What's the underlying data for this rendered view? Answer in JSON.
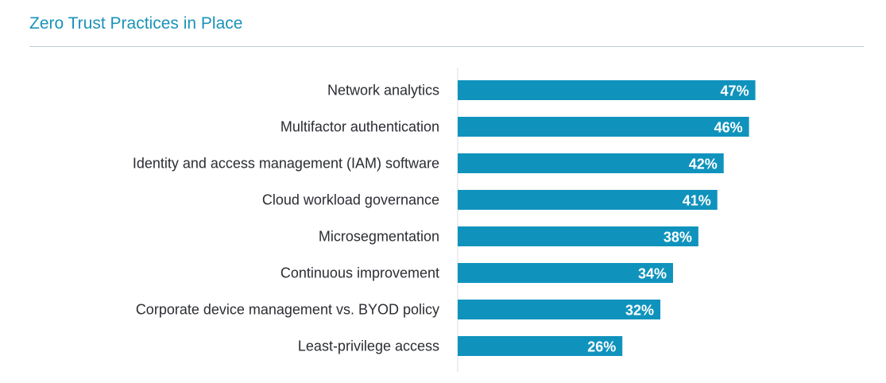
{
  "chart_data": {
    "type": "bar",
    "orientation": "horizontal",
    "title": "Zero Trust Practices in Place",
    "categories": [
      "Network analytics",
      "Multifactor authentication",
      "Identity and access management (IAM) software",
      "Cloud workload governance",
      "Microsegmentation",
      "Continuous improvement",
      "Corporate device management vs. BYOD policy",
      "Least-privilege access"
    ],
    "values": [
      47,
      46,
      42,
      41,
      38,
      34,
      32,
      26
    ],
    "value_labels": [
      "47%",
      "46%",
      "42%",
      "41%",
      "38%",
      "34%",
      "32%",
      "26%"
    ],
    "unit": "%",
    "xlim": [
      0,
      100
    ],
    "grid": false,
    "legend": "none",
    "colors": {
      "bar": "#0f93bd",
      "title": "#1a93b8",
      "rule": "#b9cfd8",
      "axis": "#d8dde0",
      "label": "#2b2d33",
      "value_label": "#ffffff"
    }
  }
}
